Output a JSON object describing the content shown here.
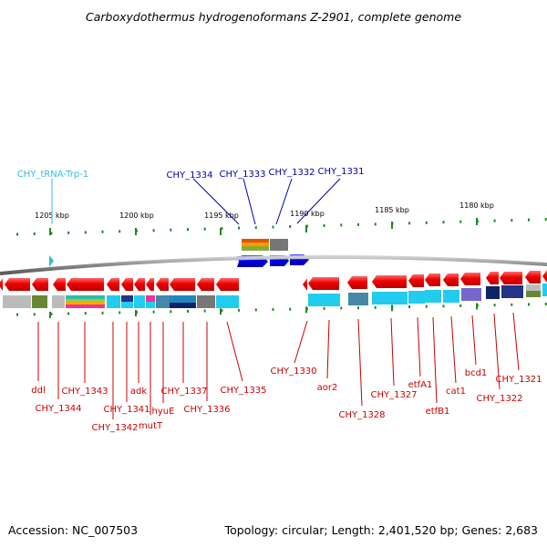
{
  "title": "Carboxydothermus hydrogenoformans Z-2901, complete genome",
  "footer": {
    "accession": "Accession: NC_007503",
    "topology": "Topology: circular; Length: 2,401,520 bp; Genes: 2,683"
  },
  "scale": [
    "1205 kbp",
    "1200 kbp",
    "1195 kbp",
    "1190 kbp",
    "1185 kbp",
    "1180 kbp"
  ],
  "labels_top": [
    {
      "text": "CHY_tRNA-Trp-1",
      "color": "#33bbdd"
    },
    {
      "text": "CHY_1334",
      "color": "#0000aa"
    },
    {
      "text": "CHY_1333",
      "color": "#0000aa"
    },
    {
      "text": "CHY_1332",
      "color": "#0000aa"
    },
    {
      "text": "CHY_1331",
      "color": "#0000aa"
    }
  ],
  "labels_bottom": [
    "ddl",
    "CHY_1344",
    "CHY_1343",
    "CHY_1342",
    "CHY_1341",
    "adk",
    "mutT",
    "hyuE",
    "CHY_1337",
    "CHY_1336",
    "CHY_1335",
    "CHY_1330",
    "aor2",
    "CHY_1328",
    "CHY_1327",
    "etfA1",
    "etfB1",
    "cat1",
    "bcd1",
    "CHY_1322",
    "CHY_1321"
  ],
  "colors": {
    "forward_gene": "#0000ee",
    "reverse_gene": "#ee0000",
    "trna": "#33bbdd",
    "backbone": "#808080",
    "tick": "#228822"
  }
}
